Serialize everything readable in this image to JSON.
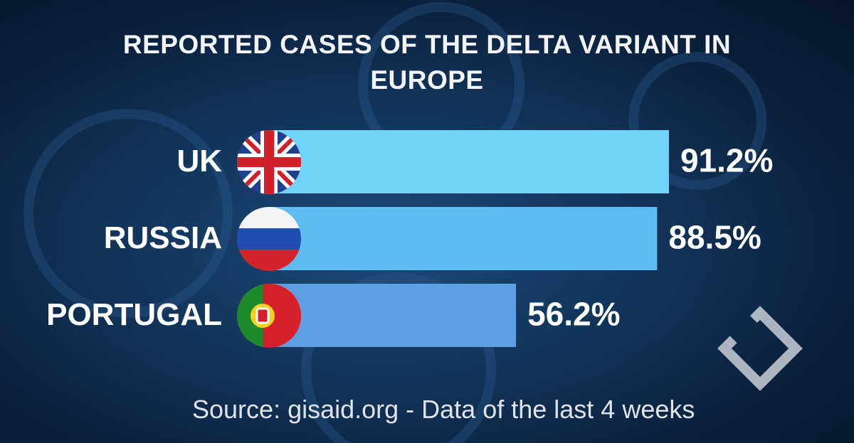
{
  "chart_data": {
    "type": "bar",
    "orientation": "horizontal",
    "title": "REPORTED CASES OF THE DELTA VARIANT IN EUROPE",
    "categories": [
      "UK",
      "RUSSIA",
      "PORTUGAL"
    ],
    "values": [
      91.2,
      88.5,
      56.2
    ],
    "value_labels": [
      "91.2%",
      "88.5%",
      "56.2%"
    ],
    "colors": [
      "#6ed3f7",
      "#5dbdf0",
      "#5d9fe2"
    ],
    "source": "Source: gisaid.org - Data of the last 4 weeks"
  }
}
